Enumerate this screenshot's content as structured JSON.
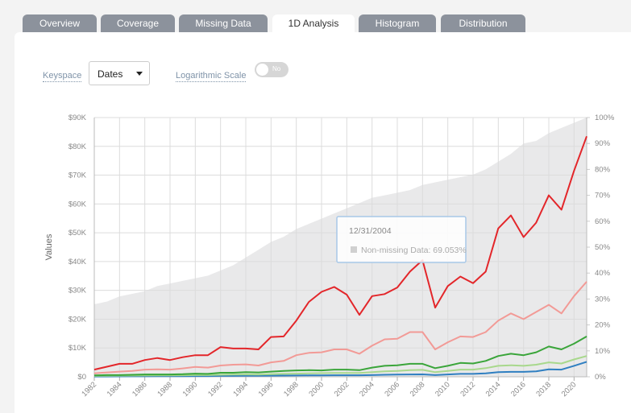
{
  "tabs": [
    "Overview",
    "Coverage",
    "Missing Data",
    "1D Analysis",
    "Histogram",
    "Distribution"
  ],
  "active_tab": 3,
  "controls": {
    "keyspace_label": "Keyspace",
    "keyspace_value": "Dates",
    "log_label": "Logarithmic Scale",
    "log_value": "No"
  },
  "chart_data": {
    "type": "line",
    "ylabel": "Values",
    "x": [
      1982,
      1983,
      1984,
      1985,
      1986,
      1987,
      1988,
      1989,
      1990,
      1991,
      1992,
      1993,
      1994,
      1995,
      1996,
      1997,
      1998,
      1999,
      2000,
      2001,
      2002,
      2003,
      2004,
      2005,
      2006,
      2007,
      2008,
      2009,
      2010,
      2011,
      2012,
      2013,
      2014,
      2015,
      2016,
      2017,
      2018,
      2019,
      2020,
      2021
    ],
    "xlim": [
      1982,
      2021
    ],
    "xticks": [
      1982,
      1984,
      1986,
      1988,
      1990,
      1992,
      1994,
      1996,
      1998,
      2000,
      2002,
      2004,
      2006,
      2008,
      2010,
      2012,
      2014,
      2016,
      2018,
      2020
    ],
    "ylim": [
      0,
      90000
    ],
    "yticks": [
      {
        "value": 0,
        "label": "$0"
      },
      {
        "value": 10000,
        "label": "$10K"
      },
      {
        "value": 20000,
        "label": "$20K"
      },
      {
        "value": 30000,
        "label": "$30K"
      },
      {
        "value": 40000,
        "label": "$40K"
      },
      {
        "value": 50000,
        "label": "$50K"
      },
      {
        "value": 60000,
        "label": "$60K"
      },
      {
        "value": 70000,
        "label": "$70K"
      },
      {
        "value": 80000,
        "label": "$80K"
      },
      {
        "value": 90000,
        "label": "$90K"
      }
    ],
    "y2lim": [
      0,
      100
    ],
    "y2ticks": [
      {
        "value": 0,
        "label": "0%"
      },
      {
        "value": 10,
        "label": "10%"
      },
      {
        "value": 20,
        "label": "20%"
      },
      {
        "value": 30,
        "label": "30%"
      },
      {
        "value": 40,
        "label": "40%"
      },
      {
        "value": 50,
        "label": "50%"
      },
      {
        "value": 60,
        "label": "60%"
      },
      {
        "value": 70,
        "label": "70%"
      },
      {
        "value": 80,
        "label": "80%"
      },
      {
        "value": 90,
        "label": "90%"
      },
      {
        "value": 100,
        "label": "100%"
      }
    ],
    "grid": true,
    "series": [
      {
        "type": "area",
        "axis": "y2",
        "color": "#e9e9ea",
        "values": [
          28,
          29,
          31,
          32,
          33,
          35,
          36,
          37,
          38,
          39,
          41,
          43,
          46,
          49,
          52,
          54,
          57,
          59,
          61,
          63,
          65,
          67,
          69.053,
          70,
          71,
          72,
          74,
          75,
          76,
          77,
          78,
          80,
          83,
          86,
          90,
          91,
          94,
          96,
          98,
          100
        ]
      },
      {
        "color": "#2f7fc1",
        "values": [
          100,
          120,
          150,
          160,
          180,
          200,
          200,
          220,
          250,
          260,
          300,
          320,
          340,
          350,
          400,
          420,
          450,
          480,
          500,
          520,
          540,
          520,
          600,
          700,
          750,
          800,
          850,
          600,
          800,
          1000,
          1000,
          1200,
          1600,
          1700,
          1700,
          1900,
          2600,
          2500,
          3800,
          5200
        ]
      },
      {
        "color": "#a8d88c",
        "values": [
          300,
          350,
          400,
          420,
          450,
          500,
          480,
          520,
          600,
          600,
          700,
          750,
          800,
          780,
          900,
          1000,
          1100,
          1200,
          1250,
          1300,
          1350,
          1300,
          1600,
          1900,
          2000,
          2300,
          2400,
          1600,
          2000,
          2500,
          2500,
          3000,
          3800,
          4000,
          3800,
          4200,
          5000,
          4600,
          6000,
          7200
        ]
      },
      {
        "color": "#3aa53a",
        "values": [
          500,
          600,
          600,
          700,
          800,
          800,
          800,
          900,
          1100,
          1000,
          1400,
          1400,
          1600,
          1500,
          1800,
          2000,
          2200,
          2300,
          2200,
          2500,
          2500,
          2300,
          3200,
          3800,
          4000,
          4500,
          4500,
          3000,
          3800,
          4800,
          4600,
          5500,
          7200,
          8000,
          7500,
          8500,
          10500,
          9500,
          11500,
          14000
        ]
      },
      {
        "color": "#f29a96",
        "values": [
          1200,
          1500,
          1800,
          2000,
          2500,
          2600,
          2500,
          2900,
          3400,
          3200,
          3900,
          4200,
          4300,
          3900,
          5000,
          5500,
          7500,
          8300,
          8500,
          9500,
          9500,
          8000,
          10800,
          13000,
          13200,
          15500,
          15500,
          9500,
          12000,
          14000,
          13800,
          15500,
          19500,
          22000,
          20000,
          22500,
          25000,
          22000,
          28000,
          33000
        ]
      },
      {
        "color": "#e3262a",
        "values": [
          2500,
          3500,
          4500,
          4500,
          5800,
          6500,
          5800,
          6800,
          7500,
          7500,
          10300,
          9800,
          9800,
          9500,
          13800,
          14000,
          19500,
          26000,
          29500,
          31200,
          28500,
          21500,
          28000,
          28700,
          31000,
          36500,
          40500,
          24000,
          31500,
          34800,
          32500,
          36500,
          51500,
          56000,
          48500,
          53500,
          63000,
          58000,
          71500,
          83500
        ]
      }
    ],
    "tooltip": {
      "date": "12/31/2004",
      "label": "Non-missing Data: 69.053%"
    }
  }
}
